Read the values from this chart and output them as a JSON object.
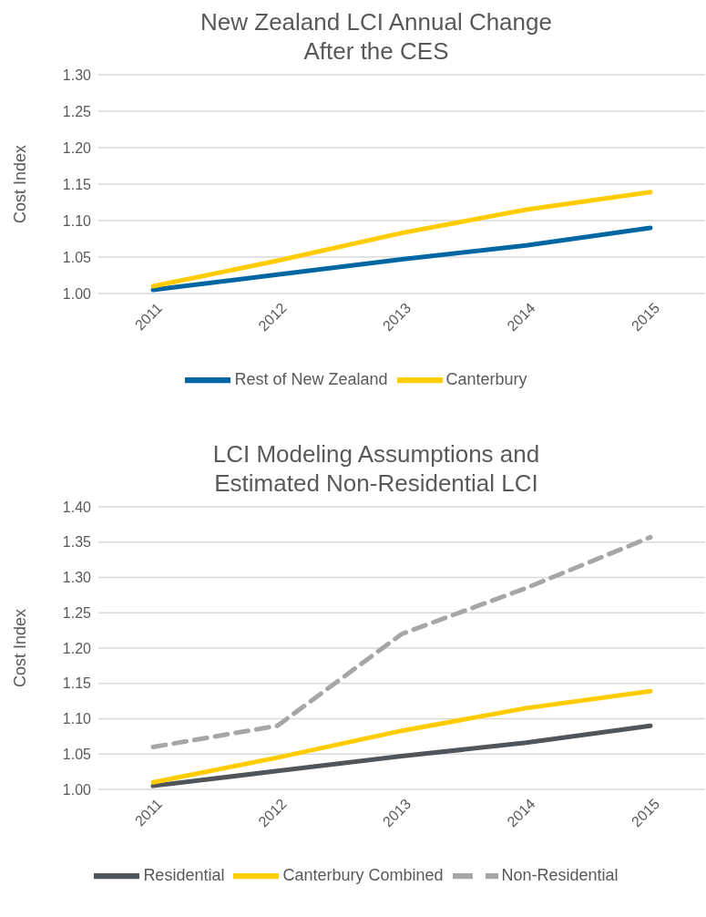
{
  "chart_data": [
    {
      "type": "line",
      "title": "New Zealand LCI Annual Change\nAfter the CES",
      "ylabel": "Cost Index",
      "categories": [
        "2011",
        "2012",
        "2013",
        "2014",
        "2015"
      ],
      "series": [
        {
          "name": "Rest of New Zealand",
          "color": "#0066a1",
          "values": [
            1.005,
            1.026,
            1.047,
            1.066,
            1.09
          ]
        },
        {
          "name": "Canterbury",
          "color": "#ffcc00",
          "values": [
            1.01,
            1.045,
            1.083,
            1.115,
            1.139
          ]
        }
      ],
      "ylim": [
        1.0,
        1.3
      ],
      "yticks": [
        {
          "value": 1.0,
          "label": "1.00"
        },
        {
          "value": 1.05,
          "label": "1.05"
        },
        {
          "value": 1.1,
          "label": "1.10"
        },
        {
          "value": 1.15,
          "label": "1.15"
        },
        {
          "value": 1.2,
          "label": "1.20"
        },
        {
          "value": 1.25,
          "label": "1.25"
        },
        {
          "value": 1.3,
          "label": "1.30"
        }
      ],
      "grid": "y",
      "legend": "bottom",
      "marker": "none"
    },
    {
      "type": "line",
      "title": "LCI Modeling Assumptions and\nEstimated Non-Residential LCI",
      "ylabel": "Cost Index",
      "categories": [
        "2011",
        "2012",
        "2013",
        "2014",
        "2015"
      ],
      "series": [
        {
          "name": "Residential",
          "color": "#50555a",
          "values": [
            1.005,
            1.026,
            1.047,
            1.066,
            1.09
          ],
          "line_style": "solid"
        },
        {
          "name": "Canterbury Combined",
          "color": "#ffcc00",
          "values": [
            1.01,
            1.045,
            1.083,
            1.115,
            1.139
          ],
          "line_style": "solid"
        },
        {
          "name": "Non-Residential",
          "color": "#a6a6a6",
          "values": [
            1.06,
            1.09,
            1.22,
            1.285,
            1.357
          ],
          "line_style": "dashed"
        }
      ],
      "ylim": [
        1.0,
        1.4
      ],
      "yticks": [
        {
          "value": 1.0,
          "label": "1.00"
        },
        {
          "value": 1.05,
          "label": "1.05"
        },
        {
          "value": 1.1,
          "label": "1.10"
        },
        {
          "value": 1.15,
          "label": "1.15"
        },
        {
          "value": 1.2,
          "label": "1.20"
        },
        {
          "value": 1.25,
          "label": "1.25"
        },
        {
          "value": 1.3,
          "label": "1.30"
        },
        {
          "value": 1.35,
          "label": "1.35"
        },
        {
          "value": 1.4,
          "label": "1.40"
        }
      ],
      "grid": "y",
      "legend": "bottom",
      "marker": "none"
    }
  ]
}
